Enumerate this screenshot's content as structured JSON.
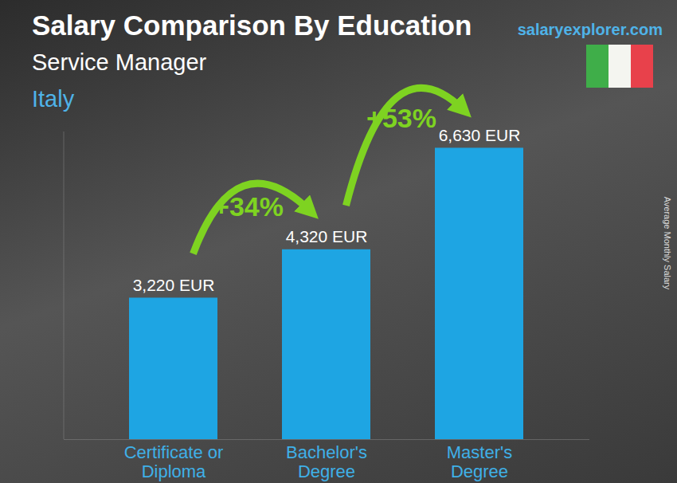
{
  "chart_data": {
    "type": "bar",
    "title": "Salary Comparison By Education",
    "subtitle": "Service Manager",
    "location": "Italy",
    "source": "salaryexplorer.com",
    "y_label": "Average Monthly Salary",
    "categories": [
      "Certificate or Diploma",
      "Bachelor's Degree",
      "Master's Degree"
    ],
    "values": [
      3220,
      4320,
      6630
    ],
    "value_labels": [
      "3,220 EUR",
      "4,320 EUR",
      "6,630 EUR"
    ],
    "annotations": [
      "+34%",
      "+53%"
    ],
    "color": "#1ea5e3",
    "ylim": [
      0,
      7000
    ],
    "grid": false,
    "data_labels": true,
    "tick_labels": "x"
  }
}
